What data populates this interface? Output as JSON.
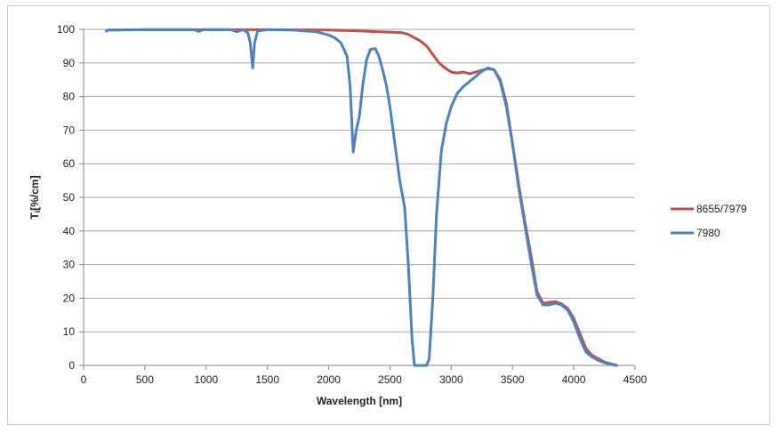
{
  "chart_data": {
    "type": "line",
    "xlabel": "Wavelength [nm]",
    "ylabel_main": "T",
    "ylabel_sub": "i",
    "ylabel_rest": "[%/cm]",
    "xlim": [
      0,
      4500
    ],
    "ylim": [
      0,
      100
    ],
    "x_ticks": [
      0,
      500,
      1000,
      1500,
      2000,
      2500,
      3000,
      3500,
      4000,
      4500
    ],
    "y_ticks": [
      0,
      10,
      20,
      30,
      40,
      50,
      60,
      70,
      80,
      90,
      100
    ],
    "grid": "horizontal",
    "legend_position": "right",
    "series": [
      {
        "name": "8655/7979",
        "color": "#c0504d",
        "points": [
          [
            185,
            99.5
          ],
          [
            200,
            99.8
          ],
          [
            500,
            99.9
          ],
          [
            1000,
            99.9
          ],
          [
            1500,
            99.9
          ],
          [
            2000,
            99.8
          ],
          [
            2200,
            99.6
          ],
          [
            2400,
            99.3
          ],
          [
            2600,
            99.0
          ],
          [
            2650,
            98.5
          ],
          [
            2700,
            97.5
          ],
          [
            2750,
            96.5
          ],
          [
            2800,
            95.0
          ],
          [
            2850,
            92.5
          ],
          [
            2900,
            90.0
          ],
          [
            2950,
            88.5
          ],
          [
            3000,
            87.3
          ],
          [
            3050,
            87.0
          ],
          [
            3100,
            87.3
          ],
          [
            3150,
            86.8
          ],
          [
            3200,
            87.3
          ],
          [
            3250,
            87.8
          ],
          [
            3300,
            88.3
          ],
          [
            3350,
            88.0
          ],
          [
            3400,
            85.0
          ],
          [
            3450,
            78.0
          ],
          [
            3500,
            66.0
          ],
          [
            3550,
            54.0
          ],
          [
            3600,
            43.0
          ],
          [
            3650,
            33.0
          ],
          [
            3700,
            22.0
          ],
          [
            3750,
            18.5
          ],
          [
            3800,
            18.8
          ],
          [
            3850,
            19.0
          ],
          [
            3900,
            18.3
          ],
          [
            3950,
            17.0
          ],
          [
            4000,
            14.0
          ],
          [
            4050,
            9.5
          ],
          [
            4100,
            5.0
          ],
          [
            4150,
            3.0
          ],
          [
            4200,
            2.0
          ],
          [
            4250,
            1.0
          ],
          [
            4300,
            0.5
          ],
          [
            4350,
            0.0
          ]
        ]
      },
      {
        "name": "7980",
        "color": "#4f81bd",
        "points": [
          [
            185,
            99.5
          ],
          [
            200,
            99.8
          ],
          [
            500,
            99.9
          ],
          [
            900,
            99.9
          ],
          [
            940,
            99.4
          ],
          [
            980,
            99.9
          ],
          [
            1200,
            99.9
          ],
          [
            1250,
            99.3
          ],
          [
            1300,
            99.9
          ],
          [
            1340,
            99.0
          ],
          [
            1360,
            96.0
          ],
          [
            1380,
            88.5
          ],
          [
            1395,
            96.0
          ],
          [
            1420,
            99.5
          ],
          [
            1500,
            99.9
          ],
          [
            1700,
            99.8
          ],
          [
            1800,
            99.5
          ],
          [
            1900,
            99.3
          ],
          [
            1950,
            98.8
          ],
          [
            2000,
            98.3
          ],
          [
            2050,
            97.5
          ],
          [
            2100,
            96.0
          ],
          [
            2150,
            92.0
          ],
          [
            2175,
            83.0
          ],
          [
            2200,
            63.5
          ],
          [
            2225,
            70.0
          ],
          [
            2250,
            74.0
          ],
          [
            2280,
            84.0
          ],
          [
            2310,
            91.0
          ],
          [
            2340,
            94.0
          ],
          [
            2380,
            94.3
          ],
          [
            2410,
            92.0
          ],
          [
            2440,
            88.0
          ],
          [
            2470,
            83.5
          ],
          [
            2500,
            77.0
          ],
          [
            2540,
            66.0
          ],
          [
            2580,
            55.0
          ],
          [
            2620,
            47.0
          ],
          [
            2650,
            30.0
          ],
          [
            2680,
            8.0
          ],
          [
            2700,
            0.0
          ],
          [
            2800,
            0.0
          ],
          [
            2820,
            2.0
          ],
          [
            2850,
            20.0
          ],
          [
            2880,
            45.0
          ],
          [
            2920,
            64.0
          ],
          [
            2960,
            72.0
          ],
          [
            3000,
            77.0
          ],
          [
            3050,
            81.0
          ],
          [
            3100,
            83.0
          ],
          [
            3150,
            84.5
          ],
          [
            3200,
            86.0
          ],
          [
            3250,
            87.5
          ],
          [
            3300,
            88.5
          ],
          [
            3350,
            88.0
          ],
          [
            3400,
            84.5
          ],
          [
            3450,
            77.0
          ],
          [
            3500,
            66.0
          ],
          [
            3550,
            53.0
          ],
          [
            3600,
            42.0
          ],
          [
            3650,
            31.0
          ],
          [
            3700,
            21.0
          ],
          [
            3750,
            18.0
          ],
          [
            3800,
            18.0
          ],
          [
            3850,
            18.5
          ],
          [
            3900,
            18.0
          ],
          [
            3950,
            16.5
          ],
          [
            4000,
            13.0
          ],
          [
            4050,
            8.0
          ],
          [
            4100,
            4.0
          ],
          [
            4150,
            2.5
          ],
          [
            4200,
            1.5
          ],
          [
            4250,
            0.8
          ],
          [
            4300,
            0.3
          ],
          [
            4350,
            0.0
          ]
        ]
      }
    ]
  }
}
